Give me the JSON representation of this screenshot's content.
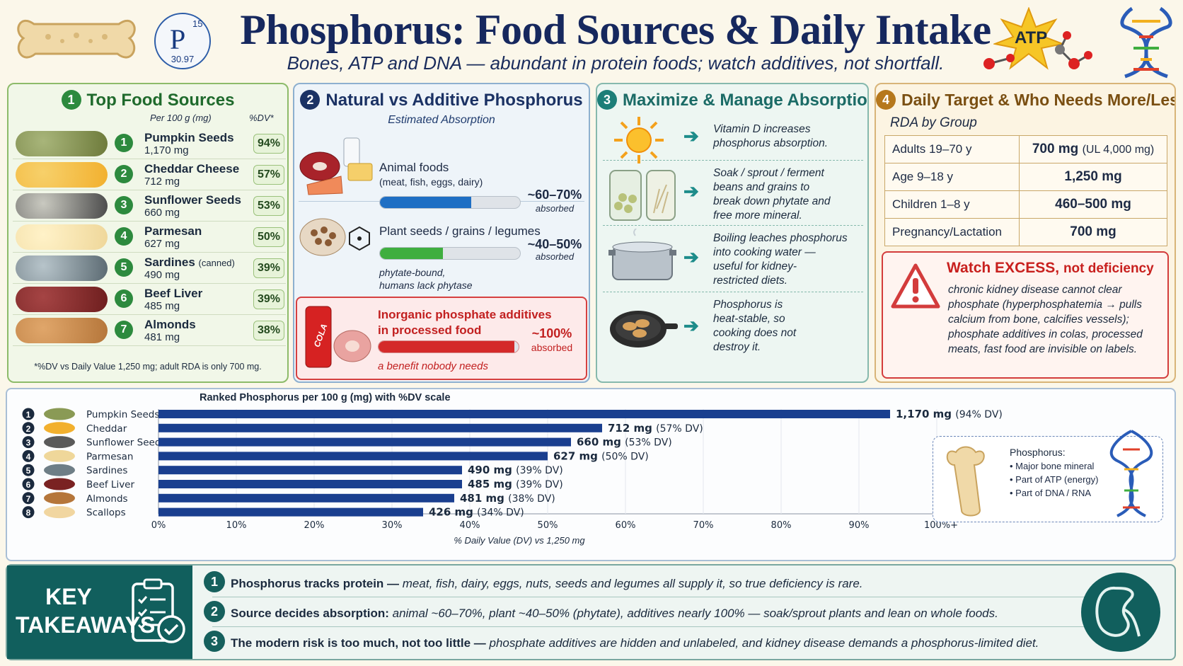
{
  "header": {
    "title": "Phosphorus: Food Sources & Daily Intake",
    "subtitle": "Bones, ATP and DNA — abundant in protein foods; watch additives, not shortfall.",
    "element": {
      "symbol": "P",
      "number": "15",
      "mass": "30.97"
    },
    "atp_label": "ATP"
  },
  "panel1": {
    "num": "1",
    "title": "Top Food Sources",
    "col_per": "Per 100 g (mg)",
    "col_dv": "%DV*",
    "foods": [
      {
        "rank": "1",
        "name": "Pumpkin Seeds",
        "note": "",
        "mg": "1,170 mg",
        "dv": "94%"
      },
      {
        "rank": "2",
        "name": "Cheddar Cheese",
        "note": "",
        "mg": "712 mg",
        "dv": "57%"
      },
      {
        "rank": "3",
        "name": "Sunflower Seeds",
        "note": "",
        "mg": "660 mg",
        "dv": "53%"
      },
      {
        "rank": "4",
        "name": "Parmesan",
        "note": "",
        "mg": "627 mg",
        "dv": "50%"
      },
      {
        "rank": "5",
        "name": "Sardines",
        "note": "(canned)",
        "mg": "490 mg",
        "dv": "39%"
      },
      {
        "rank": "6",
        "name": "Beef Liver",
        "note": "",
        "mg": "485 mg",
        "dv": "39%"
      },
      {
        "rank": "7",
        "name": "Almonds",
        "note": "",
        "mg": "481 mg",
        "dv": "38%"
      }
    ],
    "footnote": "*%DV vs Daily Value 1,250 mg; adult RDA is only 700 mg."
  },
  "panel2": {
    "num": "2",
    "title": "Natural vs Additive Phosphorus",
    "subtitle": "Estimated Absorption",
    "animal": {
      "label": "Animal foods",
      "detail": "(meat, fish, eggs, dairy)",
      "pct": "~60–70%",
      "absorbed": "absorbed",
      "fill": 0.65
    },
    "plant": {
      "label": "Plant seeds / grains / legumes",
      "detail1": "phytate-bound,",
      "detail2": "humans lack phytase",
      "pct": "~40–50%",
      "absorbed": "absorbed",
      "fill": 0.45
    },
    "additive": {
      "label1": "Inorganic phosphate additives",
      "label2": "in processed food",
      "pct": "~100%",
      "absorbed": "absorbed",
      "note": "a benefit nobody needs",
      "fill": 0.97,
      "can_text": "COLA"
    },
    "colors": {
      "animal": "#1f6fc4",
      "plant": "#3fae3f",
      "additive": "#d42a2a"
    }
  },
  "panel3": {
    "num": "3",
    "title": "Maximize & Manage Absorption",
    "rows": [
      {
        "icon": "sun-icon",
        "l1": "Vitamin D increases",
        "l2": "phosphorus absorption.",
        "l3": "",
        "l4": ""
      },
      {
        "icon": "jar-icon",
        "l1": "Soak / sprout / ferment",
        "l2": "beans and grains to",
        "l3": "break down phytate and",
        "l4": "free more mineral."
      },
      {
        "icon": "pot-icon",
        "l1": "Boiling leaches phosphorus",
        "l2": "into cooking water —",
        "l3": "useful for kidney-",
        "l4": "restricted diets."
      },
      {
        "icon": "pan-icon",
        "l1": "Phosphorus is",
        "l2": "heat-stable, so",
        "l3": "cooking does not",
        "l4": "destroy it."
      }
    ]
  },
  "panel4": {
    "num": "4",
    "title": "Daily Target & Who Needs More/Less",
    "rda_label": "RDA by Group",
    "rda": [
      {
        "group": "Adults 19–70 y",
        "value": "700 mg",
        "ul": "(UL 4,000 mg)"
      },
      {
        "group": "Age 9–18 y",
        "value": "1,250 mg",
        "ul": ""
      },
      {
        "group": "Children 1–8 y",
        "value": "460–500 mg",
        "ul": ""
      },
      {
        "group": "Pregnancy/Lactation",
        "value": "700 mg",
        "ul": ""
      }
    ],
    "excess_title_a": "Watch EXCESS,",
    "excess_title_b": "not deficiency",
    "excess_body": "chronic kidney disease cannot clear phosphate (hyperphosphatemia → pulls calcium from bone, calcifies vessels); phosphate additives in colas, processed meats, fast food are invisible on labels."
  },
  "chart_data": {
    "type": "bar",
    "orientation": "horizontal",
    "title": "Ranked Phosphorus per 100 g (mg) with %DV scale",
    "xlabel": "% Daily Value (DV) vs 1,250 mg",
    "xlim": [
      0,
      100
    ],
    "xticks": [
      "0%",
      "10%",
      "20%",
      "30%",
      "40%",
      "50%",
      "60%",
      "70%",
      "80%",
      "90%",
      "100%+"
    ],
    "categories": [
      "Pumpkin Seeds",
      "Cheddar",
      "Sunflower Seeds",
      "Parmesan",
      "Sardines",
      "Beef Liver",
      "Almonds",
      "Scallops"
    ],
    "ranks": [
      "1",
      "2",
      "3",
      "4",
      "5",
      "6",
      "7",
      "8"
    ],
    "values_mg": [
      1170,
      712,
      660,
      627,
      490,
      485,
      481,
      426
    ],
    "values_dv_pct": [
      94,
      57,
      53,
      50,
      39,
      39,
      38,
      34
    ],
    "value_labels_mg": [
      "1,170 mg",
      "712 mg",
      "660 mg",
      "627 mg",
      "490 mg",
      "485 mg",
      "481 mg",
      "426 mg"
    ],
    "value_labels_dv": [
      "(94% DV)",
      "(57% DV)",
      "(53% DV)",
      "(50% DV)",
      "(39% DV)",
      "(39% DV)",
      "(38% DV)",
      "(34% DV)"
    ],
    "bar_color": "#1a3f8f",
    "inset": {
      "title": "Phosphorus:",
      "items": [
        "• Major bone mineral",
        "• Part of ATP (energy)",
        "• Part of DNA / RNA"
      ]
    }
  },
  "takeaways": {
    "label1": "KEY",
    "label2": "TAKEAWAYS",
    "items": [
      {
        "num": "1",
        "bold": "Phosphorus tracks protein —",
        "rest": " meat, fish, dairy, eggs, nuts, seeds and legumes all supply it, so true deficiency is rare."
      },
      {
        "num": "2",
        "bold": "Source decides absorption:",
        "rest": " animal ~60–70%, plant ~40–50% (phytate), additives nearly 100% — soak/sprout plants and lean on whole foods."
      },
      {
        "num": "3",
        "bold": "The modern risk is too much, not too little —",
        "rest": " phosphate additives are hidden and unlabeled, and kidney disease demands a phosphorus-limited diet."
      }
    ]
  }
}
